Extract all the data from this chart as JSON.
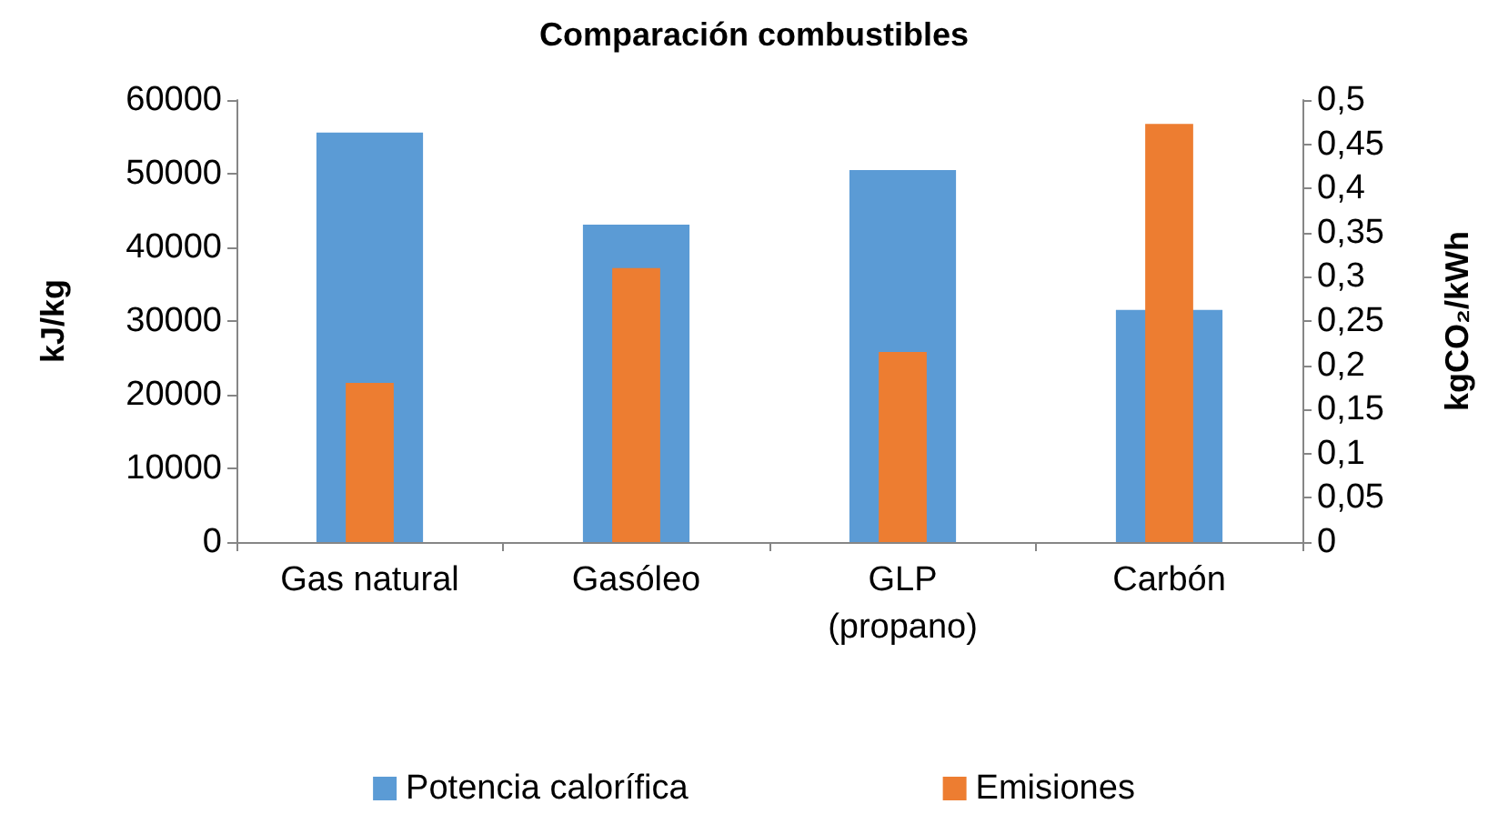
{
  "chart_data": {
    "type": "bar",
    "title": "Comparación combustibles",
    "ylabel": "kJ/kg",
    "y2label": "kgCO₂/kWh",
    "categories": [
      "Gas natural",
      "Gasóleo",
      "GLP\n(propano)",
      "Carbón"
    ],
    "series": [
      {
        "name": "Potencia calorífica",
        "color": "#5b9bd5",
        "values": [
          55600,
          43100,
          50500,
          31500
        ]
      },
      {
        "name": "Emisiones",
        "color": "#ed7d31",
        "values": [
          0.18,
          0.31,
          0.215,
          0.473
        ],
        "axis": "y2"
      }
    ],
    "ylim": [
      0,
      60000
    ],
    "yticks": [
      0,
      10000,
      20000,
      30000,
      40000,
      50000,
      60000
    ],
    "y2lim": [
      0,
      0.5
    ],
    "y2ticks": [
      0,
      {
        "value": 0.05,
        "label": "0,05"
      },
      {
        "value": 0.1,
        "label": "0,1"
      },
      {
        "value": 0.15,
        "label": "0,15"
      },
      {
        "value": 0.2,
        "label": "0,2"
      },
      {
        "value": 0.25,
        "label": "0,25"
      },
      {
        "value": 0.3,
        "label": "0,3"
      },
      {
        "value": 0.35,
        "label": "0,35"
      },
      {
        "value": 0.4,
        "label": "0,4"
      },
      {
        "value": 0.45,
        "label": "0,45"
      },
      {
        "value": 0.5,
        "label": "0,5"
      }
    ],
    "grid": false,
    "legend": "bottom"
  }
}
